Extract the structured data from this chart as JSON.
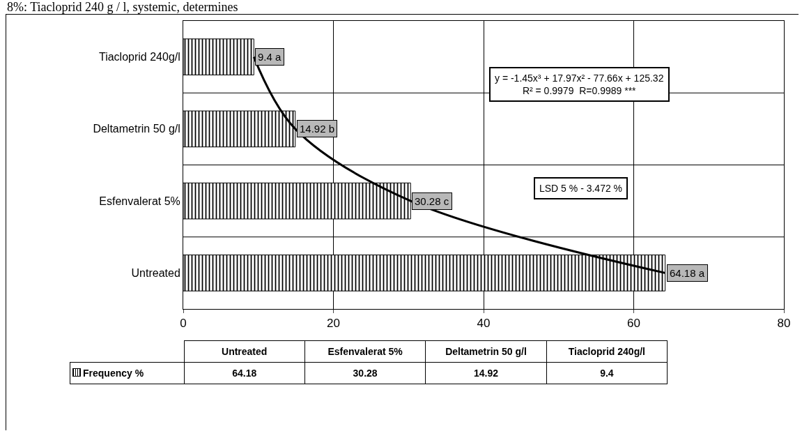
{
  "chart_data": [
    {
      "type": "bar",
      "orientation": "horizontal",
      "title": "8%: Tiacloprid 240 g / l, systemic, determines",
      "categories": [
        "Tiacloprid 240g/l",
        "Deltametrin 50 g/l",
        "Esfenvalerat 5%",
        "Untreated"
      ],
      "series": [
        {
          "color": "#000000",
          "values": [
            9.4,
            14.92,
            30.28,
            64.18
          ],
          "value_labels": [
            "9.4 a",
            "14.92 b",
            "30.28 c",
            "64.18 a"
          ]
        },
        {
          "type": "line",
          "color": "#000000",
          "values": [
            9.4,
            14.92,
            30.28,
            64.18
          ],
          "value_labels": [
            null,
            null,
            null,
            null
          ]
        }
      ],
      "xlim": [
        0,
        80
      ],
      "xticks": [
        0,
        20,
        40,
        60,
        80
      ],
      "grid": true,
      "data_labels": true,
      "annotations": [
        "y = -1.45x³ + 17.97x² - 77.66x + 125.32\nR² = 0.9979  R=0.9989 ***",
        "LSD 5 % - 3.472 %"
      ]
    },
    {
      "type": "other",
      "categories": [
        "Untreated",
        "Esfenvalerat 5%",
        "Deltametrin 50 g/l",
        "Tiacloprid 240g/l"
      ],
      "series": [
        {
          "name": "Frequency %",
          "color": "#000000",
          "values": [
            64.18,
            30.28,
            14.92,
            9.4
          ]
        }
      ],
      "data_labels": true,
      "legend": "left"
    }
  ]
}
